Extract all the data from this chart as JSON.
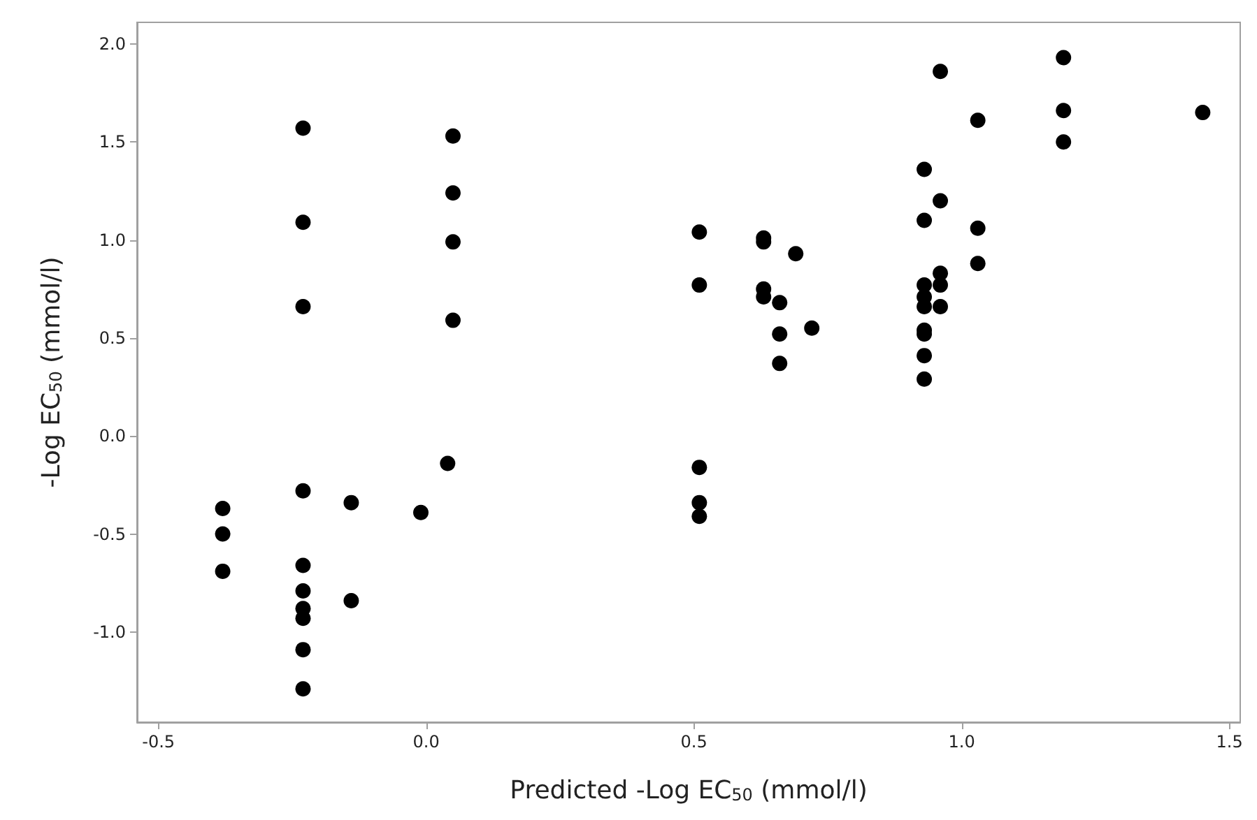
{
  "chart_data": {
    "type": "scatter",
    "xlabel": "Predicted -Log EC$_{50}$ (mmol/l)",
    "ylabel": "-Log EC$_{50}$ (mmol/l)",
    "marker": "circle",
    "xlim": [
      -0.54,
      1.52
    ],
    "ylim": [
      -1.46,
      2.11
    ],
    "xticks": [
      {
        "value": -0.5,
        "label": "-0.5"
      },
      {
        "value": 0,
        "label": "0.0"
      },
      {
        "value": 0.5,
        "label": "0.5"
      },
      {
        "value": 1,
        "label": "1.0"
      },
      {
        "value": 1.5,
        "label": "1.5"
      }
    ],
    "yticks": [
      {
        "value": -1,
        "label": "-1.0"
      },
      {
        "value": -0.5,
        "label": "-0.5"
      },
      {
        "value": 0,
        "label": "0.0"
      },
      {
        "value": 0.5,
        "label": "0.5"
      },
      {
        "value": 1,
        "label": "1.0"
      },
      {
        "value": 1.5,
        "label": "1.5"
      },
      {
        "value": 2,
        "label": "2.0"
      }
    ],
    "series": [
      {
        "color": "#000000",
        "x": [
          -0.38,
          -0.38,
          -0.38,
          -0.23,
          -0.23,
          -0.23,
          -0.23,
          -0.23,
          -0.23,
          -0.23,
          -0.23,
          -0.23,
          -0.23,
          -0.14,
          -0.14,
          -0.01,
          0.04,
          0.05,
          0.05,
          0.05,
          0.05,
          0.51,
          0.51,
          0.51,
          0.51,
          0.51,
          0.63,
          0.63,
          0.63,
          0.63,
          0.66,
          0.66,
          0.66,
          0.69,
          0.72,
          0.93,
          0.93,
          0.93,
          0.93,
          0.93,
          0.93,
          0.93,
          0.93,
          0.93,
          0.96,
          0.96,
          0.96,
          0.96,
          0.96,
          1.03,
          1.03,
          1.03,
          1.19,
          1.19,
          1.19,
          1.45
        ],
        "values": [
          -0.37,
          -0.5,
          -0.69,
          1.57,
          1.09,
          0.66,
          -0.28,
          -0.66,
          -0.79,
          -0.88,
          -0.93,
          -1.09,
          -1.29,
          -0.34,
          -0.84,
          -0.39,
          -0.14,
          1.53,
          1.24,
          0.99,
          0.59,
          1.04,
          0.77,
          -0.16,
          -0.34,
          -0.41,
          1.01,
          0.99,
          0.75,
          0.71,
          0.68,
          0.52,
          0.37,
          0.93,
          0.55,
          1.36,
          1.1,
          0.77,
          0.71,
          0.66,
          0.54,
          0.52,
          0.41,
          0.29,
          1.86,
          1.2,
          0.83,
          0.77,
          0.66,
          1.61,
          1.06,
          0.88,
          1.93,
          1.66,
          1.5,
          1.65
        ]
      }
    ]
  }
}
